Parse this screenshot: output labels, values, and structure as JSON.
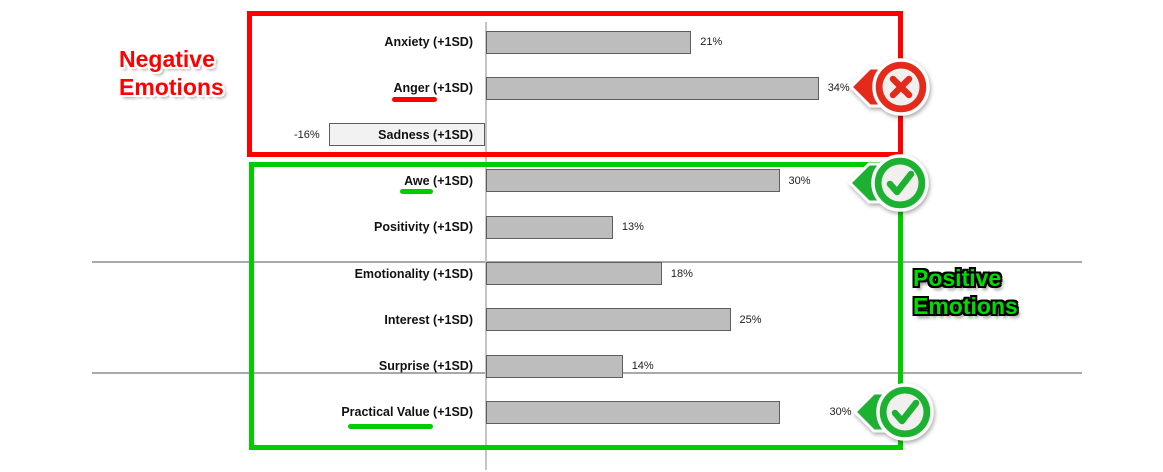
{
  "chart_data": {
    "type": "bar",
    "orientation": "horizontal",
    "unit": "%",
    "categories": [
      "Anxiety (+1SD)",
      "Anger (+1SD)",
      "Sadness (+1SD)",
      "Awe (+1SD)",
      "Positivity (+1SD)",
      "Emotionality (+1SD)",
      "Interest (+1SD)",
      "Surprise (+1SD)",
      "Practical Value (+1SD)"
    ],
    "values": [
      21,
      34,
      -16,
      30,
      13,
      18,
      25,
      14,
      30
    ],
    "value_labels": [
      "21%",
      "34%",
      "-16%",
      "30%",
      "13%",
      "18%",
      "25%",
      "14%",
      "30%"
    ],
    "underlined_categories": [
      {
        "index": 1,
        "category": "Anger (+1SD)",
        "color": "#FF0000"
      },
      {
        "index": 3,
        "category": "Awe (+1SD)",
        "color": "#00CC00"
      },
      {
        "index": 8,
        "category": "Practical Value (+1SD)",
        "color": "#00CC00"
      }
    ],
    "layout": {
      "zero_axis_line": true,
      "horizontal_gridlines": 2,
      "legend": "none",
      "value_axis_labels": "none"
    }
  },
  "annotations": {
    "negative": {
      "line1": "Negative",
      "line2": "Emotions",
      "color": "#FF0000"
    },
    "positive": {
      "line1": "Positive",
      "line2": "Emotions",
      "color": "#00CC00"
    }
  },
  "groups": {
    "negative_box": {
      "color": "#FF0000",
      "items": [
        "Anxiety (+1SD)",
        "Anger (+1SD)",
        "Sadness (+1SD)"
      ]
    },
    "positive_box": {
      "color": "#00CC00",
      "items": [
        "Awe (+1SD)",
        "Positivity (+1SD)",
        "Emotionality (+1SD)",
        "Interest (+1SD)",
        "Surprise (+1SD)",
        "Practical Value (+1SD)"
      ]
    }
  },
  "badges": [
    {
      "icon": "x-circle-icon",
      "meaning": "negative-marker",
      "attached_to": "Anger (+1SD)"
    },
    {
      "icon": "check-circle-icon",
      "meaning": "positive-marker",
      "attached_to": "Awe (+1SD)"
    },
    {
      "icon": "check-circle-icon",
      "meaning": "positive-marker",
      "attached_to": "Practical Value (+1SD)"
    }
  ],
  "colors": {
    "negative_accent": "#FE0000",
    "positive_accent": "#00CC00",
    "badge_red": "#E42A1A",
    "badge_green": "#1CB130",
    "bar_fill": "#BDBDBD",
    "bar_border": "#5E5E5E",
    "negative_bar_fill": "#F2F2F2",
    "grid": "#A9A9A9",
    "axis": "#C4C4C4",
    "annotation_red": "#FF0000",
    "annotation_green": "#00DC00",
    "badge_inner": "#F2F0EE"
  }
}
